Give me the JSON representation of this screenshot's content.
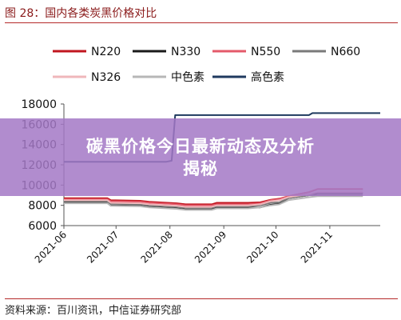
{
  "figure_title": "图 28：国内各类炭黑价格对比",
  "source": "资料来源：百川资讯，中信证券研究部",
  "banner": {
    "line1": "碳黑价格今日最新动态及分析",
    "line2": "揭秘"
  },
  "chart_data": {
    "type": "line",
    "title": "",
    "xlabel": "",
    "ylabel": "",
    "ylim": [
      6000,
      18000
    ],
    "y_ticks": [
      6000,
      8000,
      10000,
      12000,
      14000,
      16000,
      18000
    ],
    "y_tick_labels": [
      "6000",
      "8000",
      "10000",
      "12000",
      "14000",
      "16000",
      "18000"
    ],
    "x_range": [
      "2021-06-01",
      "2021-11-30"
    ],
    "x_ticks": [
      "2021-06-01",
      "2021-07-01",
      "2021-08-01",
      "2021-09-01",
      "2021-10-01",
      "2021-11-01"
    ],
    "x_tick_labels": [
      "2021-06",
      "2021-07",
      "2021-08",
      "2021-09",
      "2021-10",
      "2021-11"
    ],
    "legend_position": "top",
    "grid": false,
    "series": [
      {
        "name": "N220",
        "color": "#c0161f",
        "width": 2,
        "x": [
          "2021-06-01",
          "2021-06-26",
          "2021-06-28",
          "2021-07-15",
          "2021-07-20",
          "2021-08-05",
          "2021-08-10",
          "2021-08-25",
          "2021-08-28",
          "2021-09-15",
          "2021-09-22",
          "2021-09-28",
          "2021-10-03",
          "2021-10-08",
          "2021-10-20",
          "2021-10-25",
          "2021-11-20"
        ],
        "y": [
          8700,
          8700,
          8500,
          8450,
          8350,
          8200,
          8100,
          8100,
          8250,
          8250,
          8300,
          8550,
          8650,
          8900,
          9300,
          9600,
          9600
        ]
      },
      {
        "name": "N330",
        "color": "#1a1a1a",
        "width": 2,
        "x": [
          "2021-06-01",
          "2021-06-26",
          "2021-06-28",
          "2021-07-15",
          "2021-07-20",
          "2021-08-05",
          "2021-08-10",
          "2021-08-25",
          "2021-08-28",
          "2021-09-15",
          "2021-09-22",
          "2021-09-28",
          "2021-10-03",
          "2021-10-08",
          "2021-10-20",
          "2021-10-25",
          "2021-11-20"
        ],
        "y": [
          8300,
          8300,
          8000,
          7950,
          7850,
          7700,
          7600,
          7600,
          7750,
          7750,
          7800,
          8050,
          8150,
          8700,
          9000,
          9200,
          9200
        ]
      },
      {
        "name": "N550",
        "color": "#e45a6a",
        "width": 2,
        "x": [
          "2021-06-01",
          "2021-06-26",
          "2021-06-28",
          "2021-07-15",
          "2021-07-20",
          "2021-08-05",
          "2021-08-10",
          "2021-08-25",
          "2021-08-28",
          "2021-09-15",
          "2021-09-22",
          "2021-09-28",
          "2021-10-03",
          "2021-10-08",
          "2021-10-20",
          "2021-10-25",
          "2021-11-20"
        ],
        "y": [
          8600,
          8600,
          8400,
          8350,
          8250,
          8100,
          8000,
          8000,
          8100,
          8100,
          8200,
          8500,
          8600,
          8900,
          9300,
          9600,
          9600
        ]
      },
      {
        "name": "N660",
        "color": "#7a7a7a",
        "width": 2,
        "x": [
          "2021-06-01",
          "2021-06-26",
          "2021-06-28",
          "2021-07-15",
          "2021-07-20",
          "2021-08-05",
          "2021-08-10",
          "2021-08-25",
          "2021-08-28",
          "2021-09-15",
          "2021-09-22",
          "2021-09-28",
          "2021-10-03",
          "2021-10-08",
          "2021-10-20",
          "2021-10-25",
          "2021-11-20"
        ],
        "y": [
          8400,
          8400,
          8150,
          8100,
          8000,
          7850,
          7750,
          7750,
          7900,
          7900,
          8000,
          8250,
          8300,
          8700,
          9000,
          9000,
          9000
        ]
      },
      {
        "name": "N326",
        "color": "#efb7bb",
        "width": 2,
        "x": [
          "2021-06-01",
          "2021-06-26",
          "2021-06-28",
          "2021-07-15",
          "2021-07-20",
          "2021-08-05",
          "2021-08-10",
          "2021-08-25",
          "2021-08-28",
          "2021-09-15",
          "2021-09-22",
          "2021-09-28",
          "2021-10-03",
          "2021-10-08",
          "2021-10-20",
          "2021-10-25",
          "2021-11-20"
        ],
        "y": [
          8500,
          8500,
          8250,
          8200,
          8100,
          7950,
          7850,
          7850,
          8000,
          8000,
          8100,
          8400,
          8500,
          8800,
          9100,
          9300,
          9300
        ]
      },
      {
        "name": "中色素",
        "color": "#b7b7b7",
        "width": 2,
        "x": [
          "2021-06-01",
          "2021-06-26",
          "2021-06-28",
          "2021-07-15",
          "2021-07-20",
          "2021-08-05",
          "2021-08-10",
          "2021-08-25",
          "2021-08-28",
          "2021-09-15",
          "2021-09-22",
          "2021-09-28",
          "2021-10-03",
          "2021-10-08",
          "2021-10-20",
          "2021-10-25",
          "2021-11-20"
        ],
        "y": [
          8200,
          8200,
          7950,
          7900,
          7800,
          7650,
          7550,
          7550,
          7700,
          7700,
          7800,
          8000,
          8100,
          8500,
          8800,
          8900,
          8900
        ]
      },
      {
        "name": "高色素",
        "color": "#1f3a5f",
        "width": 2,
        "x": [
          "2021-06-01",
          "2021-07-30",
          "2021-08-02",
          "2021-08-04",
          "2021-10-20",
          "2021-10-22",
          "2021-11-30"
        ],
        "y": [
          12300,
          12300,
          12400,
          16900,
          16900,
          17100,
          17100
        ]
      }
    ]
  }
}
